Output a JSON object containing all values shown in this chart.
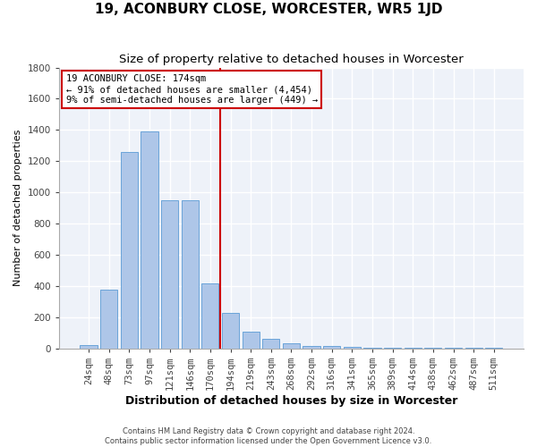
{
  "title": "19, ACONBURY CLOSE, WORCESTER, WR5 1JD",
  "subtitle": "Size of property relative to detached houses in Worcester",
  "xlabel": "Distribution of detached houses by size in Worcester",
  "ylabel": "Number of detached properties",
  "categories": [
    "24sqm",
    "48sqm",
    "73sqm",
    "97sqm",
    "121sqm",
    "146sqm",
    "170sqm",
    "194sqm",
    "219sqm",
    "243sqm",
    "268sqm",
    "292sqm",
    "316sqm",
    "341sqm",
    "365sqm",
    "389sqm",
    "414sqm",
    "438sqm",
    "462sqm",
    "487sqm",
    "511sqm"
  ],
  "values": [
    20,
    380,
    1260,
    1390,
    950,
    950,
    415,
    230,
    110,
    60,
    35,
    18,
    14,
    10,
    8,
    5,
    5,
    5,
    5,
    5,
    5
  ],
  "bar_color": "#aec6e8",
  "bar_edge_color": "#5b9bd5",
  "vline_x": 6.5,
  "vline_color": "#cc0000",
  "annotation_lines": [
    "19 ACONBURY CLOSE: 174sqm",
    "← 91% of detached houses are smaller (4,454)",
    "9% of semi-detached houses are larger (449) →"
  ],
  "annotation_box_color": "#cc0000",
  "footer_line1": "Contains HM Land Registry data © Crown copyright and database right 2024.",
  "footer_line2": "Contains public sector information licensed under the Open Government Licence v3.0.",
  "ylim": [
    0,
    1800
  ],
  "yticks": [
    0,
    200,
    400,
    600,
    800,
    1000,
    1200,
    1400,
    1600,
    1800
  ],
  "background_color": "#eef2f9",
  "grid_color": "#ffffff",
  "title_fontsize": 11,
  "subtitle_fontsize": 9.5,
  "ylabel_fontsize": 8,
  "xlabel_fontsize": 9,
  "tick_fontsize": 7.5,
  "annotation_fontsize": 7.5,
  "footer_fontsize": 6
}
